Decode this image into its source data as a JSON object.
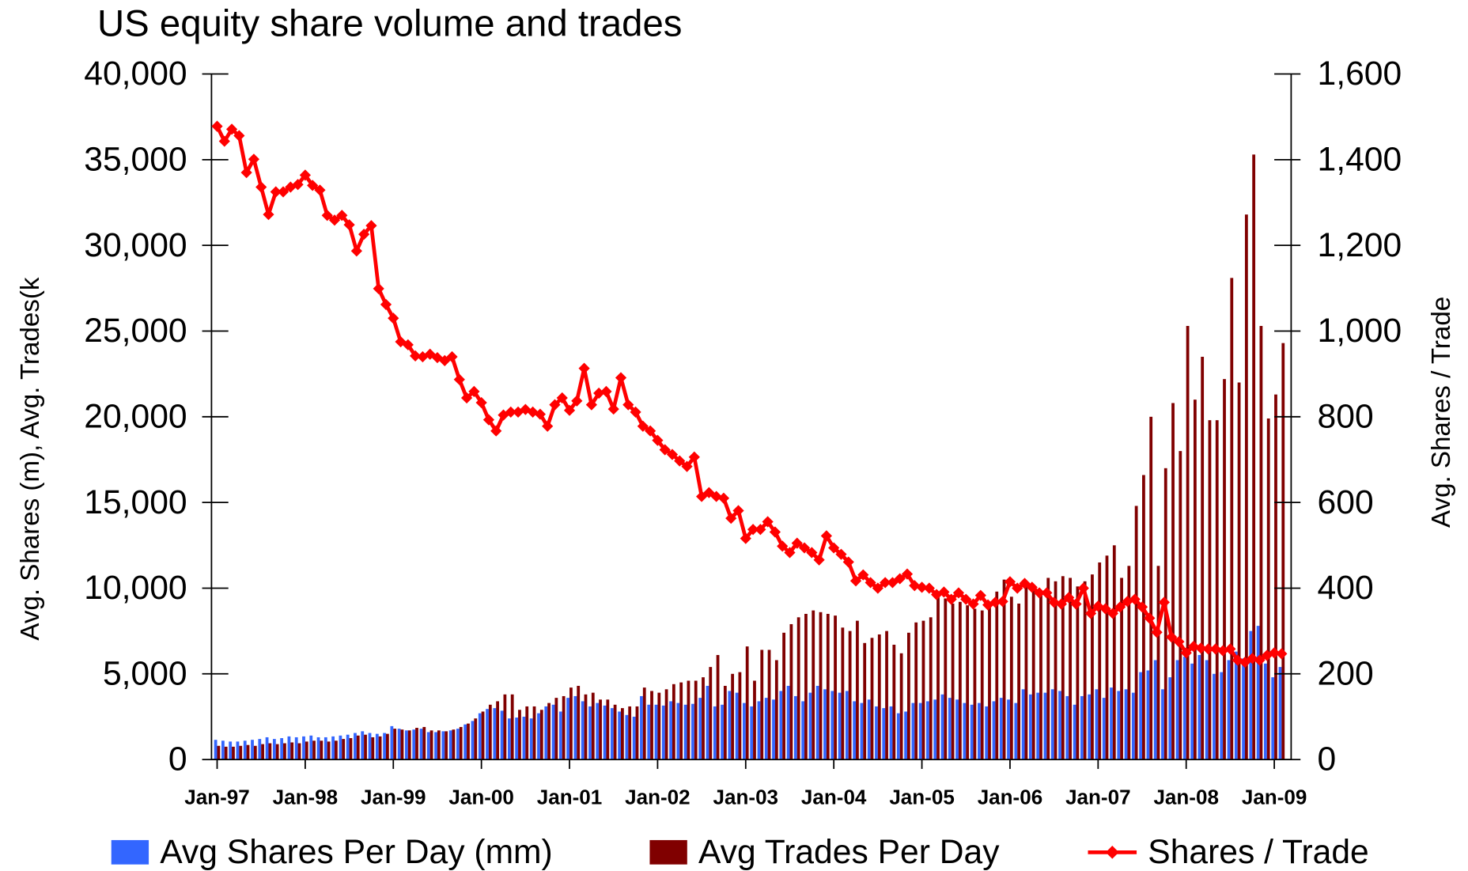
{
  "chart_data": {
    "type": "bar-line",
    "title": "US equity share volume and trades",
    "y_label": "Avg. Shares (m), Avg. Trades(k",
    "y2_label": "Avg. Shares / Trade",
    "categories": [
      "Jan-97",
      null,
      null,
      null,
      null,
      null,
      null,
      null,
      null,
      null,
      null,
      null,
      "Jan-98",
      null,
      null,
      null,
      null,
      null,
      null,
      null,
      null,
      null,
      null,
      null,
      "Jan-99",
      null,
      null,
      null,
      null,
      null,
      null,
      null,
      null,
      null,
      null,
      null,
      "Jan-00",
      null,
      null,
      null,
      null,
      null,
      null,
      null,
      null,
      null,
      null,
      null,
      "Jan-01",
      null,
      null,
      null,
      null,
      null,
      null,
      null,
      null,
      null,
      null,
      null,
      "Jan-02",
      null,
      null,
      null,
      null,
      null,
      null,
      null,
      null,
      null,
      null,
      null,
      "Jan-03",
      null,
      null,
      null,
      null,
      null,
      null,
      null,
      null,
      null,
      null,
      null,
      "Jan-04",
      null,
      null,
      null,
      null,
      null,
      null,
      null,
      null,
      null,
      null,
      null,
      "Jan-05",
      null,
      null,
      null,
      null,
      null,
      null,
      null,
      null,
      null,
      null,
      null,
      "Jan-06",
      null,
      null,
      null,
      null,
      null,
      null,
      null,
      null,
      null,
      null,
      null,
      "Jan-07",
      null,
      null,
      null,
      null,
      null,
      null,
      null,
      null,
      null,
      null,
      null,
      "Jan-08",
      null,
      null,
      null,
      null,
      null,
      null,
      null,
      null,
      null,
      null,
      null,
      "Jan-09",
      null
    ],
    "series": [
      {
        "name": "Avg Shares Per Day (mm)",
        "color": "#3366ff",
        "kind": "bar",
        "values": [
          1150,
          1100,
          1050,
          1050,
          1100,
          1150,
          1200,
          1300,
          1200,
          1250,
          1350,
          1300,
          1350,
          1400,
          1300,
          1300,
          1350,
          1400,
          1450,
          1550,
          1650,
          1550,
          1500,
          1550,
          1950,
          1800,
          1700,
          1750,
          1800,
          1600,
          1600,
          1650,
          1700,
          1800,
          2050,
          2250,
          2700,
          2950,
          3000,
          2850,
          2400,
          2450,
          2500,
          2400,
          2700,
          3100,
          3200,
          2800,
          3600,
          3700,
          3400,
          3100,
          3300,
          3150,
          3000,
          2800,
          2600,
          2500,
          3700,
          3200,
          3200,
          3150,
          3400,
          3300,
          3200,
          3250,
          3600,
          4300,
          3100,
          3200,
          4000,
          3900,
          3300,
          3100,
          3400,
          3600,
          3500,
          4000,
          4300,
          3700,
          3400,
          3900,
          4300,
          4100,
          4000,
          3900,
          4000,
          3400,
          3300,
          3500,
          3100,
          3000,
          3100,
          2700,
          2800,
          3300,
          3300,
          3400,
          3500,
          3800,
          3600,
          3500,
          3300,
          3200,
          3300,
          3100,
          3400,
          3600,
          3500,
          3300,
          4100,
          3800,
          3900,
          3900,
          4100,
          4000,
          3700,
          3200,
          3700,
          3800,
          4100,
          3600,
          4200,
          4000,
          4100,
          3900,
          5100,
          5200,
          5800,
          4100,
          4800,
          5800,
          6000,
          5600,
          6100,
          5800,
          5000,
          5100,
          5800,
          6300,
          5900,
          7500,
          7800,
          5600,
          4800,
          5400
        ]
      },
      {
        "name": "Avg Trades Per Day",
        "color": "#800000",
        "kind": "bar",
        "values": [
          800,
          750,
          750,
          800,
          850,
          800,
          900,
          950,
          900,
          950,
          1000,
          950,
          1050,
          1100,
          1100,
          1050,
          1100,
          1200,
          1250,
          1400,
          1450,
          1300,
          1350,
          1500,
          1800,
          1750,
          1700,
          1850,
          1900,
          1700,
          1700,
          1650,
          1750,
          1900,
          2100,
          2400,
          2800,
          3200,
          3400,
          3800,
          3800,
          2900,
          3100,
          3100,
          2900,
          3300,
          3600,
          3700,
          4200,
          4300,
          3800,
          3900,
          3500,
          3500,
          3200,
          3000,
          3100,
          3100,
          4200,
          4000,
          3900,
          4100,
          4400,
          4500,
          4600,
          4600,
          4800,
          5400,
          6100,
          4300,
          5000,
          5100,
          6600,
          4600,
          6400,
          6400,
          5800,
          7400,
          7900,
          8300,
          8500,
          8700,
          8600,
          8500,
          8400,
          7700,
          7500,
          8100,
          6800,
          7100,
          7300,
          7500,
          6700,
          6200,
          7400,
          8000,
          8100,
          8300,
          9500,
          9400,
          9100,
          9200,
          9000,
          8800,
          8700,
          8900,
          9800,
          10500,
          9500,
          9100,
          10300,
          10000,
          9800,
          10600,
          10400,
          10700,
          10600,
          10100,
          10400,
          10800,
          11500,
          11900,
          12500,
          10600,
          11300,
          14800,
          16600,
          20000,
          11300,
          17000,
          20800,
          18000,
          25300,
          21000,
          23500,
          19800,
          19800,
          22200,
          28100,
          22000,
          31800,
          35300,
          25300,
          19900,
          21300,
          24300
        ]
      },
      {
        "name": "Shares / Trade",
        "color": "#ff0000",
        "kind": "line",
        "axis": "y2",
        "values": [
          1478,
          1443,
          1471,
          1456,
          1370,
          1401,
          1336,
          1272,
          1325,
          1325,
          1336,
          1342,
          1364,
          1340,
          1329,
          1270,
          1259,
          1270,
          1248,
          1187,
          1226,
          1246,
          1099,
          1062,
          1030,
          975,
          968,
          942,
          940,
          946,
          938,
          931,
          940,
          887,
          844,
          859,
          833,
          793,
          767,
          804,
          811,
          811,
          817,
          811,
          806,
          778,
          828,
          844,
          815,
          837,
          913,
          828,
          855,
          859,
          818,
          891,
          828,
          811,
          778,
          767,
          745,
          723,
          712,
          697,
          684,
          706,
          614,
          623,
          614,
          610,
          563,
          581,
          516,
          537,
          537,
          555,
          531,
          498,
          483,
          505,
          494,
          483,
          466,
          522,
          494,
          479,
          461,
          417,
          431,
          413,
          400,
          413,
          413,
          422,
          433,
          406,
          402,
          400,
          385,
          391,
          374,
          389,
          374,
          363,
          383,
          361,
          367,
          369,
          415,
          400,
          411,
          402,
          389,
          389,
          367,
          363,
          378,
          363,
          400,
          341,
          358,
          352,
          341,
          356,
          369,
          374,
          356,
          330,
          297,
          367,
          286,
          275,
          249,
          264,
          260,
          258,
          258,
          254,
          258,
          232,
          227,
          236,
          232,
          243,
          249,
          247
        ]
      }
    ],
    "ylim": [
      0,
      40000
    ],
    "yticks": [
      0,
      {
        "value": 5000,
        "label": "5,000"
      },
      {
        "value": 10000,
        "label": "10,000"
      },
      {
        "value": 15000,
        "label": "15,000"
      },
      {
        "value": 20000,
        "label": "20,000"
      },
      {
        "value": 25000,
        "label": "25,000"
      },
      {
        "value": 30000,
        "label": "30,000"
      },
      {
        "value": 35000,
        "label": "35,000"
      },
      {
        "value": 40000,
        "label": "40,000"
      }
    ],
    "y2lim": [
      0,
      1600
    ],
    "y2ticks": [
      0,
      200,
      400,
      600,
      800,
      {
        "value": 1000,
        "label": "1,000"
      },
      {
        "value": 1200,
        "label": "1,200"
      },
      {
        "value": 1400,
        "label": "1,400"
      },
      {
        "value": 1600,
        "label": "1,600"
      }
    ],
    "grid": false,
    "legend": "bottom"
  }
}
